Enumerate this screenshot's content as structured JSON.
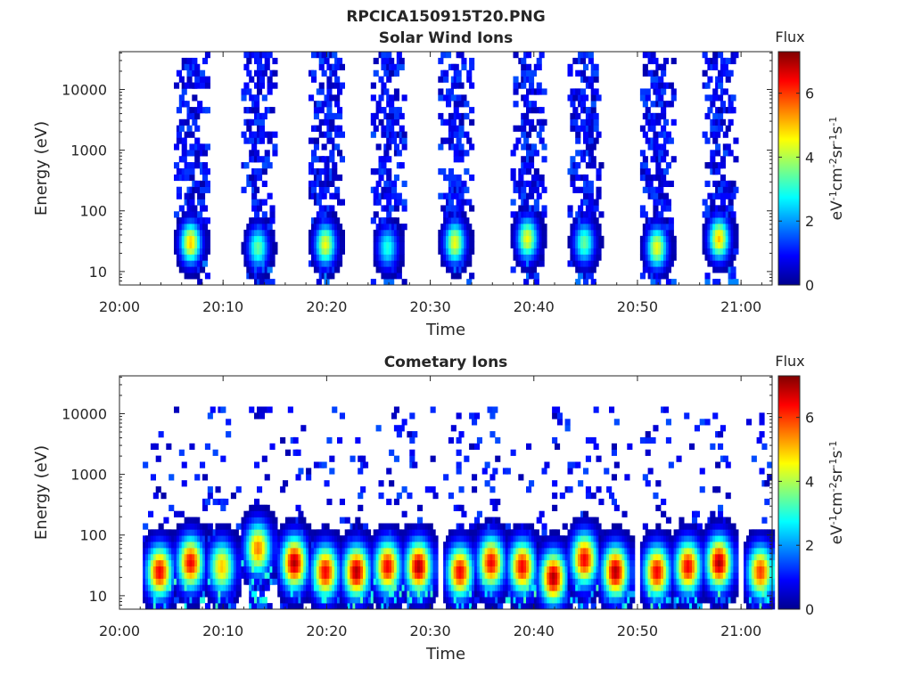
{
  "figure_title": "RPCICA150915T20.PNG",
  "chart_data": [
    {
      "type": "heatmap",
      "title": "Solar Wind Ions",
      "xlabel": "Time",
      "ylabel": "Energy (eV)",
      "x_ticks": [
        "20:00",
        "20:10",
        "20:20",
        "20:30",
        "20:40",
        "20:50",
        "21:00"
      ],
      "y_ticks": [
        "10",
        "100",
        "1000",
        "10000"
      ],
      "y_scale": "log",
      "xlim": [
        "20:00",
        "21:03"
      ],
      "ylim": [
        6,
        42000
      ],
      "colorbar": {
        "title": "Flux",
        "label": "eV-1cm-2sr-1s-1",
        "ticks": [
          "0",
          "2",
          "4",
          "6"
        ],
        "range": [
          0,
          7.3
        ],
        "colormap": "jet"
      },
      "bursts": [
        {
          "center": "20:07",
          "peak_energy_eV": 30,
          "peak_flux": 5.0
        },
        {
          "center": "20:13:30",
          "peak_energy_eV": 25,
          "peak_flux": 3.5
        },
        {
          "center": "20:20",
          "peak_energy_eV": 28,
          "peak_flux": 4.5
        },
        {
          "center": "20:26",
          "peak_energy_eV": 25,
          "peak_flux": 3.0
        },
        {
          "center": "20:32:30",
          "peak_energy_eV": 30,
          "peak_flux": 4.5
        },
        {
          "center": "20:39:30",
          "peak_energy_eV": 35,
          "peak_flux": 4.5
        },
        {
          "center": "20:45",
          "peak_energy_eV": 30,
          "peak_flux": 3.5
        },
        {
          "center": "20:52",
          "peak_energy_eV": 25,
          "peak_flux": 4.5
        },
        {
          "center": "20:58",
          "peak_energy_eV": 35,
          "peak_flux": 5.0
        }
      ]
    },
    {
      "type": "heatmap",
      "title": "Cometary Ions",
      "xlabel": "Time",
      "ylabel": "Energy (eV)",
      "x_ticks": [
        "20:00",
        "20:10",
        "20:20",
        "20:30",
        "20:40",
        "20:50",
        "21:00"
      ],
      "y_ticks": [
        "10",
        "100",
        "1000",
        "10000"
      ],
      "y_scale": "log",
      "xlim": [
        "20:00",
        "21:03"
      ],
      "ylim": [
        6,
        42000
      ],
      "colorbar": {
        "title": "Flux",
        "label": "eV-1cm-2sr-1s-1",
        "ticks": [
          "0",
          "2",
          "4",
          "6"
        ],
        "range": [
          0,
          7.3
        ],
        "colormap": "jet"
      },
      "bursts": [
        {
          "center": "20:04",
          "peak_energy_eV": 25,
          "peak_flux": 6.5
        },
        {
          "center": "20:07",
          "peak_energy_eV": 35,
          "peak_flux": 6.5
        },
        {
          "center": "20:10",
          "peak_energy_eV": 30,
          "peak_flux": 5.0
        },
        {
          "center": "20:13:30",
          "peak_energy_eV": 60,
          "peak_flux": 5.5
        },
        {
          "center": "20:17",
          "peak_energy_eV": 35,
          "peak_flux": 7.0
        },
        {
          "center": "20:20",
          "peak_energy_eV": 25,
          "peak_flux": 6.5
        },
        {
          "center": "20:23",
          "peak_energy_eV": 25,
          "peak_flux": 7.0
        },
        {
          "center": "20:26",
          "peak_energy_eV": 30,
          "peak_flux": 6.5
        },
        {
          "center": "20:29",
          "peak_energy_eV": 30,
          "peak_flux": 7.0
        },
        {
          "center": "20:33",
          "peak_energy_eV": 25,
          "peak_flux": 6.5
        },
        {
          "center": "20:36",
          "peak_energy_eV": 35,
          "peak_flux": 6.5
        },
        {
          "center": "20:39",
          "peak_energy_eV": 30,
          "peak_flux": 6.5
        },
        {
          "center": "20:42",
          "peak_energy_eV": 20,
          "peak_flux": 7.0
        },
        {
          "center": "20:45",
          "peak_energy_eV": 40,
          "peak_flux": 6.5
        },
        {
          "center": "20:48",
          "peak_energy_eV": 25,
          "peak_flux": 7.0
        },
        {
          "center": "20:52",
          "peak_energy_eV": 25,
          "peak_flux": 6.5
        },
        {
          "center": "20:55",
          "peak_energy_eV": 30,
          "peak_flux": 6.5
        },
        {
          "center": "20:58",
          "peak_energy_eV": 35,
          "peak_flux": 7.0
        },
        {
          "center": "21:02",
          "peak_energy_eV": 25,
          "peak_flux": 6.0
        }
      ]
    }
  ]
}
